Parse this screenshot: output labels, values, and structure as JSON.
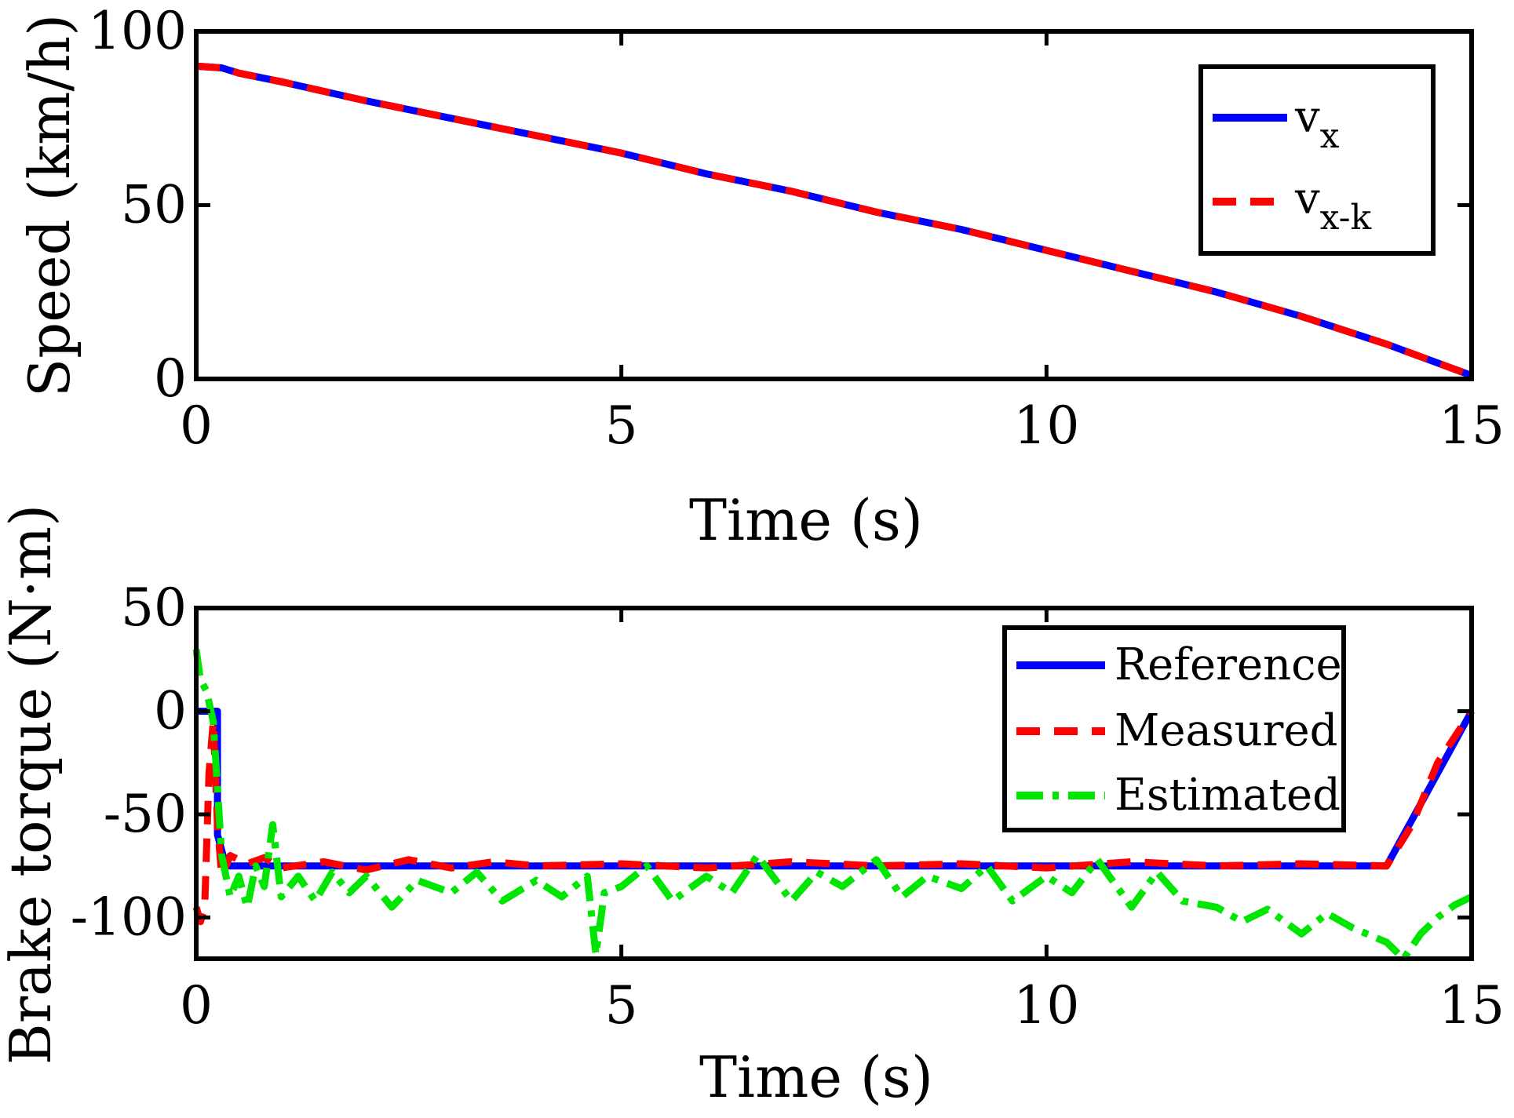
{
  "chart_data": [
    {
      "type": "line",
      "xlabel": "Time (s)",
      "ylabel": "Speed (km/h)",
      "xlim": [
        0,
        15
      ],
      "ylim": [
        0,
        100
      ],
      "xticks": [
        "0",
        "5",
        "10",
        "15"
      ],
      "yticks": [
        "0",
        "50",
        "100"
      ],
      "legend_position": "top-right",
      "series": [
        {
          "name": "v",
          "subscript": "x",
          "color": "#0000ff",
          "style": "solid",
          "x": [
            0,
            0.3,
            0.5,
            1,
            2,
            3,
            4,
            5,
            6,
            7,
            8,
            9,
            10,
            11,
            12,
            13,
            14,
            15
          ],
          "y": [
            90,
            89.5,
            88,
            85.5,
            80,
            75,
            70,
            65,
            59,
            54,
            48,
            43,
            37,
            31,
            25,
            18,
            10,
            1
          ]
        },
        {
          "name": "v",
          "subscript": "x-k",
          "color": "#ff0000",
          "style": "dashed",
          "x": [
            0,
            0.3,
            0.5,
            1,
            2,
            3,
            4,
            5,
            6,
            7,
            8,
            9,
            10,
            11,
            12,
            13,
            14,
            15
          ],
          "y": [
            90,
            89.5,
            88,
            85.5,
            80,
            75,
            70,
            65,
            59,
            54,
            48,
            43,
            37,
            31,
            25,
            18,
            10,
            1
          ]
        }
      ]
    },
    {
      "type": "line",
      "xlabel": "Time (s)",
      "ylabel": "Brake torque (N·m)",
      "xlim": [
        0,
        15
      ],
      "ylim": [
        -120,
        50
      ],
      "xticks": [
        "0",
        "5",
        "10",
        "15"
      ],
      "yticks": [
        "-100",
        "-50",
        "0",
        "50"
      ],
      "legend_position": "top-right",
      "series": [
        {
          "name": "Reference",
          "color": "#0000ff",
          "style": "solid",
          "x": [
            0,
            0.25,
            0.25,
            0.35,
            14.0,
            15.0
          ],
          "y": [
            0,
            0,
            -60,
            -75,
            -75,
            0
          ]
        },
        {
          "name": "Measured",
          "color": "#ff0000",
          "style": "dashed",
          "x": [
            0,
            0.05,
            0.1,
            0.15,
            0.2,
            0.25,
            0.3,
            0.4,
            0.6,
            0.8,
            1.0,
            1.5,
            2,
            2.5,
            3,
            3.5,
            4,
            5,
            6,
            7,
            8,
            9,
            10,
            11,
            12,
            13,
            14,
            14.3,
            14.6,
            15
          ],
          "y": [
            -95,
            -102,
            -95,
            -30,
            -5,
            -55,
            -80,
            -70,
            -74,
            -71,
            -76,
            -73,
            -77,
            -72,
            -76,
            -73,
            -75,
            -74,
            -76,
            -73,
            -75,
            -74,
            -76,
            -73,
            -75,
            -74,
            -75,
            -55,
            -25,
            0
          ]
        },
        {
          "name": "Estimated",
          "color": "#00e600",
          "style": "dashdot",
          "x": [
            0,
            0.05,
            0.12,
            0.2,
            0.3,
            0.4,
            0.5,
            0.6,
            0.7,
            0.8,
            0.9,
            1.0,
            1.2,
            1.4,
            1.6,
            1.8,
            2.0,
            2.3,
            2.6,
            3.0,
            3.3,
            3.6,
            4.0,
            4.3,
            4.6,
            4.7,
            4.8,
            5.0,
            5.3,
            5.6,
            6.0,
            6.3,
            6.6,
            7.0,
            7.3,
            7.6,
            8.0,
            8.3,
            8.6,
            9.0,
            9.3,
            9.6,
            10.0,
            10.3,
            10.6,
            11.0,
            11.3,
            11.6,
            12.0,
            12.3,
            12.6,
            13.0,
            13.3,
            13.6,
            14.0,
            14.2,
            14.4,
            14.6,
            14.8,
            15.0
          ],
          "y": [
            30,
            15,
            10,
            -5,
            -70,
            -90,
            -80,
            -95,
            -75,
            -85,
            -55,
            -90,
            -80,
            -92,
            -78,
            -88,
            -80,
            -95,
            -82,
            -88,
            -78,
            -92,
            -82,
            -90,
            -80,
            -118,
            -88,
            -85,
            -75,
            -92,
            -80,
            -88,
            -70,
            -92,
            -78,
            -85,
            -72,
            -90,
            -80,
            -86,
            -75,
            -92,
            -80,
            -88,
            -72,
            -95,
            -78,
            -92,
            -95,
            -102,
            -96,
            -108,
            -98,
            -105,
            -112,
            -120,
            -108,
            -100,
            -94,
            -90
          ]
        }
      ]
    }
  ]
}
